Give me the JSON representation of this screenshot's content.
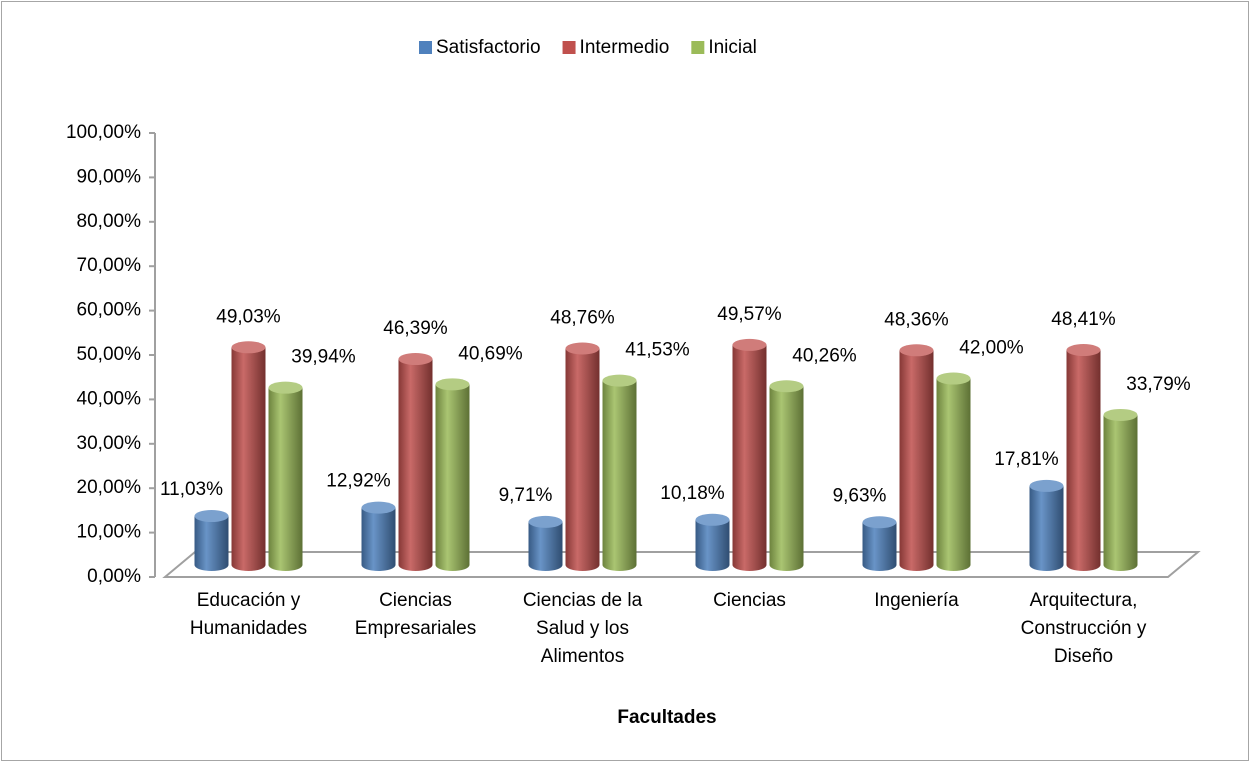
{
  "chart_data": {
    "type": "bar3d",
    "x_label": "Facultades",
    "categories": [
      "Educación y Humanidades",
      "Ciencias Empresariales",
      "Ciencias de la Salud y los Alimentos",
      "Ciencias",
      "Ingeniería",
      "Arquitectura, Construcción y Diseño"
    ],
    "series": [
      {
        "name": "Satisfactorio",
        "color": "#4f81bd",
        "values": [
          11.03,
          12.92,
          9.71,
          10.18,
          9.63,
          17.81
        ],
        "value_labels": [
          "11,03%",
          "12,92%",
          "9,71%",
          "10,18%",
          "9,63%",
          "17,81%"
        ]
      },
      {
        "name": "Intermedio",
        "color": "#c0504d",
        "values": [
          49.03,
          46.39,
          48.76,
          49.57,
          48.36,
          48.41
        ],
        "value_labels": [
          "49,03%",
          "46,39%",
          "48,76%",
          "49,57%",
          "48,36%",
          "48,41%"
        ]
      },
      {
        "name": "Inicial",
        "color": "#9bbb59",
        "values": [
          39.94,
          40.69,
          41.53,
          40.26,
          42.0,
          33.79
        ],
        "value_labels": [
          "39,94%",
          "40,69%",
          "41,53%",
          "40,26%",
          "42,00%",
          "33,79%"
        ]
      }
    ],
    "ylim": [
      0,
      100
    ],
    "yticks": [
      {
        "value": 0,
        "label": "0,00%"
      },
      {
        "value": 10,
        "label": "10,00%"
      },
      {
        "value": 20,
        "label": "20,00%"
      },
      {
        "value": 30,
        "label": "30,00%"
      },
      {
        "value": 40,
        "label": "40,00%"
      },
      {
        "value": 50,
        "label": "50,00%"
      },
      {
        "value": 60,
        "label": "60,00%"
      },
      {
        "value": 70,
        "label": "70,00%"
      },
      {
        "value": 80,
        "label": "80,00%"
      },
      {
        "value": 90,
        "label": "90,00%"
      },
      {
        "value": 100,
        "label": "100,00%"
      }
    ],
    "legend": "top"
  }
}
